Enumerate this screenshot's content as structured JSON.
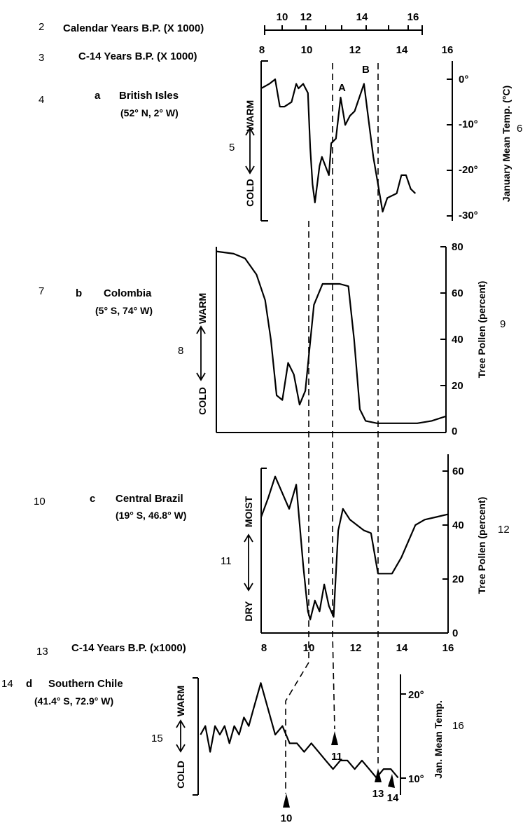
{
  "row_numbers": [
    "2",
    "3",
    "4",
    "5",
    "6",
    "7",
    "8",
    "9",
    "10",
    "11",
    "12",
    "13",
    "14",
    "15",
    "16"
  ],
  "top_axes": {
    "calendar_label": "Calendar Years B.P. (X 1000)",
    "calendar_ticks": [
      "10",
      "12",
      "14",
      "16"
    ],
    "c14_label": "C-14 Years B.P. (X 1000)",
    "c14_ticks": [
      "8",
      "10",
      "12",
      "14",
      "16"
    ],
    "bottom_c14_label": "C-14 Years B.P.  (x1000)",
    "bottom_c14_ticks": [
      "8",
      "10",
      "12",
      "14",
      "16"
    ]
  },
  "colors": {
    "ink": "#000000",
    "paper": "#ffffff"
  },
  "chart_data": [
    {
      "type": "line",
      "panel_letter": "a",
      "title": "British Isles",
      "subtitle": "(52° N, 2° W)",
      "left_top": "WARM",
      "left_bottom": "COLD",
      "ylabel": "January Mean Temp. (°C)",
      "y_ticks": [
        "0°",
        "-10°",
        "-20°",
        "-30°"
      ],
      "ylim": [
        -30,
        5
      ],
      "xlim": [
        8,
        16
      ],
      "markers": [
        {
          "label": "A",
          "x": 11.4,
          "y": -5
        },
        {
          "label": "B",
          "x": 12.3,
          "y": -1
        }
      ],
      "series": [
        {
          "x": [
            8,
            8.35,
            8.6,
            8.8,
            9.0,
            9.3,
            9.5,
            9.6,
            9.8,
            9.9,
            10.0,
            10.1,
            10.2,
            10.3,
            10.5,
            10.6,
            10.9,
            11.0,
            11.2,
            11.4,
            11.6,
            11.8,
            12.0,
            12.2,
            12.4,
            12.6,
            12.8,
            13.0,
            13.2,
            13.4,
            13.8,
            14.0,
            14.2,
            14.4,
            14.6
          ],
          "y": [
            -1,
            0,
            1,
            -5,
            -5,
            -4,
            0,
            -1,
            0,
            -1,
            -2,
            -14,
            -22,
            -26,
            -18,
            -16,
            -20,
            -13,
            -12,
            -3,
            -9,
            -7,
            -6,
            -3,
            0,
            -8,
            -16,
            -22,
            -28,
            -25,
            -24,
            -20,
            -20,
            -23,
            -24
          ]
        }
      ]
    },
    {
      "type": "line",
      "panel_letter": "b",
      "title": "Colombia",
      "subtitle": "(5° S, 74° W)",
      "left_top": "WARM",
      "left_bottom": "COLD",
      "ylabel": "Tree Pollen (percent)",
      "y_ticks": [
        "80",
        "60",
        "40",
        "20",
        "0"
      ],
      "ylim": [
        0,
        80
      ],
      "xlim": [
        8,
        16
      ],
      "series": [
        {
          "x": [
            8,
            8.6,
            9.0,
            9.4,
            9.7,
            9.9,
            10.1,
            10.3,
            10.5,
            10.7,
            10.9,
            11.1,
            11.4,
            11.7,
            12.0,
            12.3,
            12.6,
            12.8,
            13.0,
            13.2,
            13.6,
            14.0,
            14.5,
            15.0,
            15.5,
            16.0
          ],
          "y": [
            78,
            77,
            75,
            68,
            57,
            40,
            16,
            14,
            30,
            25,
            12,
            18,
            55,
            64,
            64,
            64,
            63,
            40,
            10,
            5,
            4,
            4,
            4,
            4,
            5,
            7
          ]
        }
      ]
    },
    {
      "type": "line",
      "panel_letter": "c",
      "title": "Central Brazil",
      "subtitle": "(19° S, 46.8° W)",
      "left_top": "MOIST",
      "left_bottom": "DRY",
      "ylabel": "Tree Pollen (percent)",
      "y_ticks": [
        "60",
        "40",
        "20",
        "0"
      ],
      "ylim": [
        0,
        65
      ],
      "xlim": [
        8,
        16
      ],
      "series": [
        {
          "x": [
            8,
            8.3,
            8.6,
            8.9,
            9.2,
            9.5,
            9.8,
            10.0,
            10.1,
            10.3,
            10.5,
            10.7,
            10.9,
            11.1,
            11.3,
            11.5,
            11.8,
            12.1,
            12.4,
            12.7,
            13.0,
            13.3,
            13.6,
            14.0,
            14.3,
            14.6,
            15.0,
            15.5,
            16.0
          ],
          "y": [
            43,
            50,
            58,
            52,
            46,
            55,
            25,
            8,
            5,
            12,
            8,
            18,
            10,
            6,
            38,
            46,
            42,
            40,
            38,
            37,
            22,
            22,
            22,
            28,
            34,
            40,
            42,
            43,
            44
          ]
        }
      ]
    },
    {
      "type": "line",
      "panel_letter": "d",
      "title": "Southern Chile",
      "subtitle": "(41.4° S, 72.9° W)",
      "left_top": "WARM",
      "left_bottom": "COLD",
      "ylabel": "Jan. Mean Temp.",
      "y_ticks": [
        "20°",
        "10°"
      ],
      "ylim": [
        8,
        22
      ],
      "xlim": [
        8,
        16
      ],
      "arrow_labels": [
        "10",
        "11",
        "13",
        "14"
      ],
      "series": [
        {
          "x": [
            8.1,
            8.3,
            8.5,
            8.7,
            8.9,
            9.1,
            9.3,
            9.5,
            9.7,
            9.9,
            10.1,
            10.3,
            10.6,
            10.9,
            11.2,
            11.5,
            11.8,
            12.1,
            12.4,
            12.7,
            13.0,
            13.3,
            13.6,
            13.9,
            14.2,
            14.5,
            14.8,
            15.1,
            15.4,
            15.7,
            16.0,
            16.3
          ],
          "y": [
            15,
            16,
            13,
            16,
            15,
            16,
            14,
            16,
            15,
            17,
            16,
            18,
            21,
            18,
            15,
            16,
            14,
            14,
            13,
            14,
            13,
            12,
            11,
            12,
            12,
            11,
            12,
            11,
            10,
            11,
            11,
            10
          ]
        }
      ]
    }
  ]
}
